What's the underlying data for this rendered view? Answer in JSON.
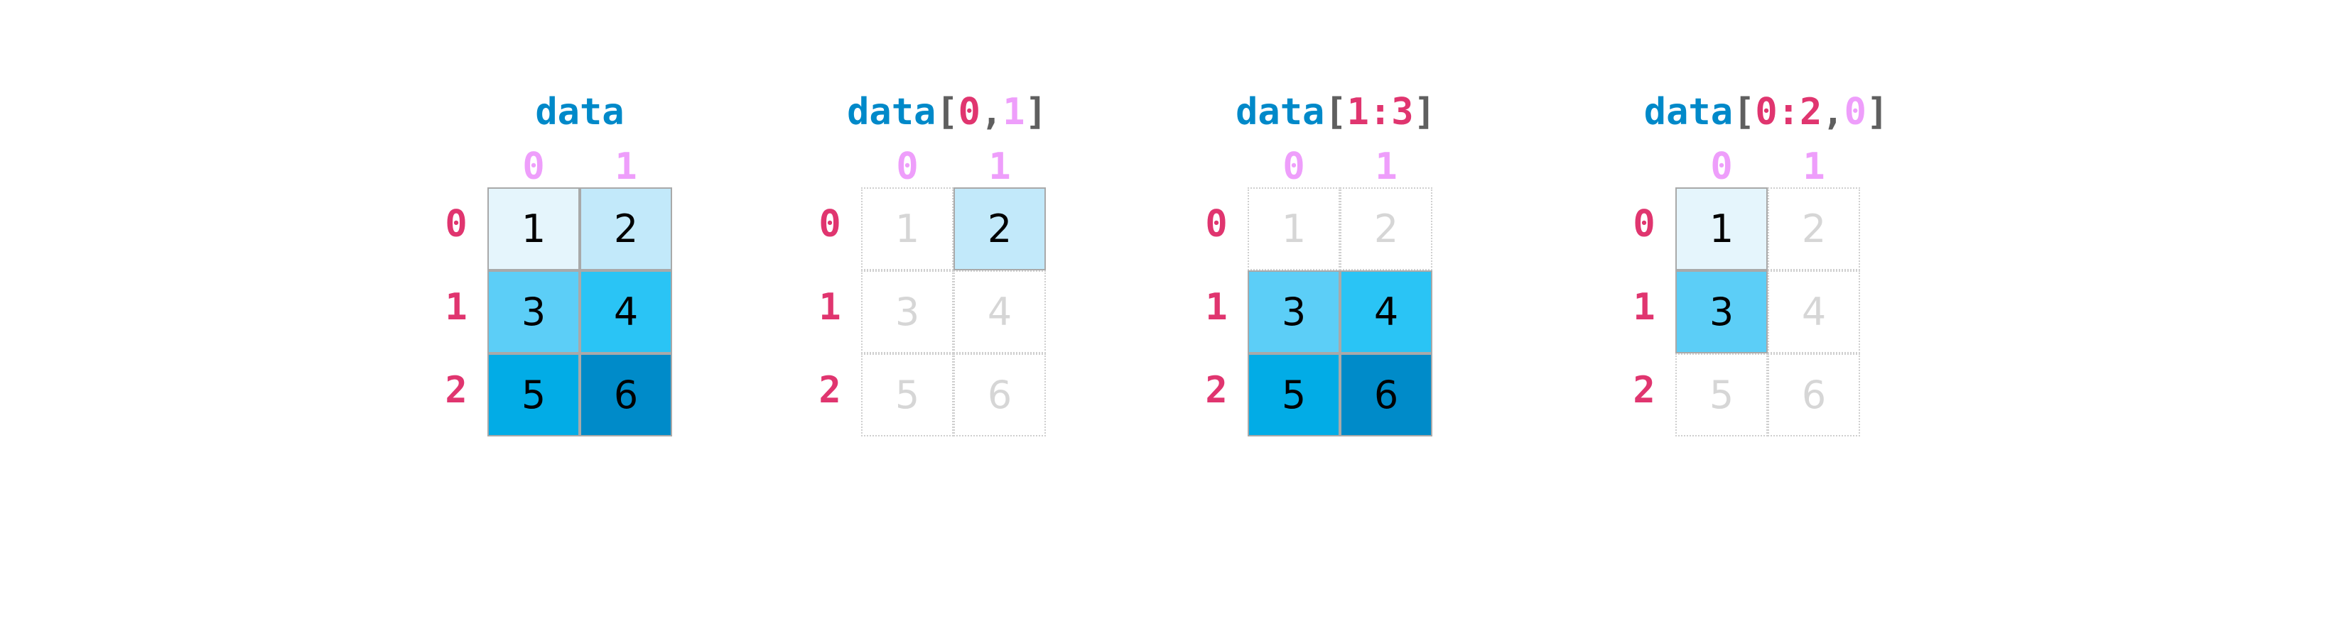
{
  "colors": {
    "name": "#0089c9",
    "row_index": "#e0356f",
    "col_index": "#ee9efb",
    "bracket": "#5f5f5f",
    "cell_fills": [
      "#e5f5fc",
      "#c2e9fa",
      "#5ccef7",
      "#2ac4f5",
      "#02ace6",
      "#008bc9"
    ]
  },
  "values": [
    [
      1,
      2
    ],
    [
      3,
      4
    ],
    [
      5,
      6
    ]
  ],
  "col_labels": [
    "0",
    "1"
  ],
  "row_labels": [
    "0",
    "1",
    "2"
  ],
  "panels": [
    {
      "title": [
        {
          "text": "data",
          "role": "name"
        }
      ],
      "selected": [
        [
          true,
          true
        ],
        [
          true,
          true
        ],
        [
          true,
          true
        ]
      ]
    },
    {
      "title": [
        {
          "text": "data",
          "role": "name"
        },
        {
          "text": "[",
          "role": "bracket"
        },
        {
          "text": "0",
          "role": "row_index"
        },
        {
          "text": ",",
          "role": "bracket"
        },
        {
          "text": "1",
          "role": "col_index"
        },
        {
          "text": "]",
          "role": "bracket"
        }
      ],
      "selected": [
        [
          false,
          true
        ],
        [
          false,
          false
        ],
        [
          false,
          false
        ]
      ]
    },
    {
      "title": [
        {
          "text": "data",
          "role": "name"
        },
        {
          "text": "[",
          "role": "bracket"
        },
        {
          "text": "1:3",
          "role": "row_index"
        },
        {
          "text": "]",
          "role": "bracket"
        }
      ],
      "selected": [
        [
          false,
          false
        ],
        [
          true,
          true
        ],
        [
          true,
          true
        ]
      ]
    },
    {
      "title": [
        {
          "text": "data",
          "role": "name"
        },
        {
          "text": "[",
          "role": "bracket"
        },
        {
          "text": "0:2",
          "role": "row_index"
        },
        {
          "text": ",",
          "role": "bracket"
        },
        {
          "text": "0",
          "role": "col_index"
        },
        {
          "text": "]",
          "role": "bracket"
        }
      ],
      "selected": [
        [
          true,
          false
        ],
        [
          true,
          false
        ],
        [
          false,
          false
        ]
      ]
    }
  ]
}
